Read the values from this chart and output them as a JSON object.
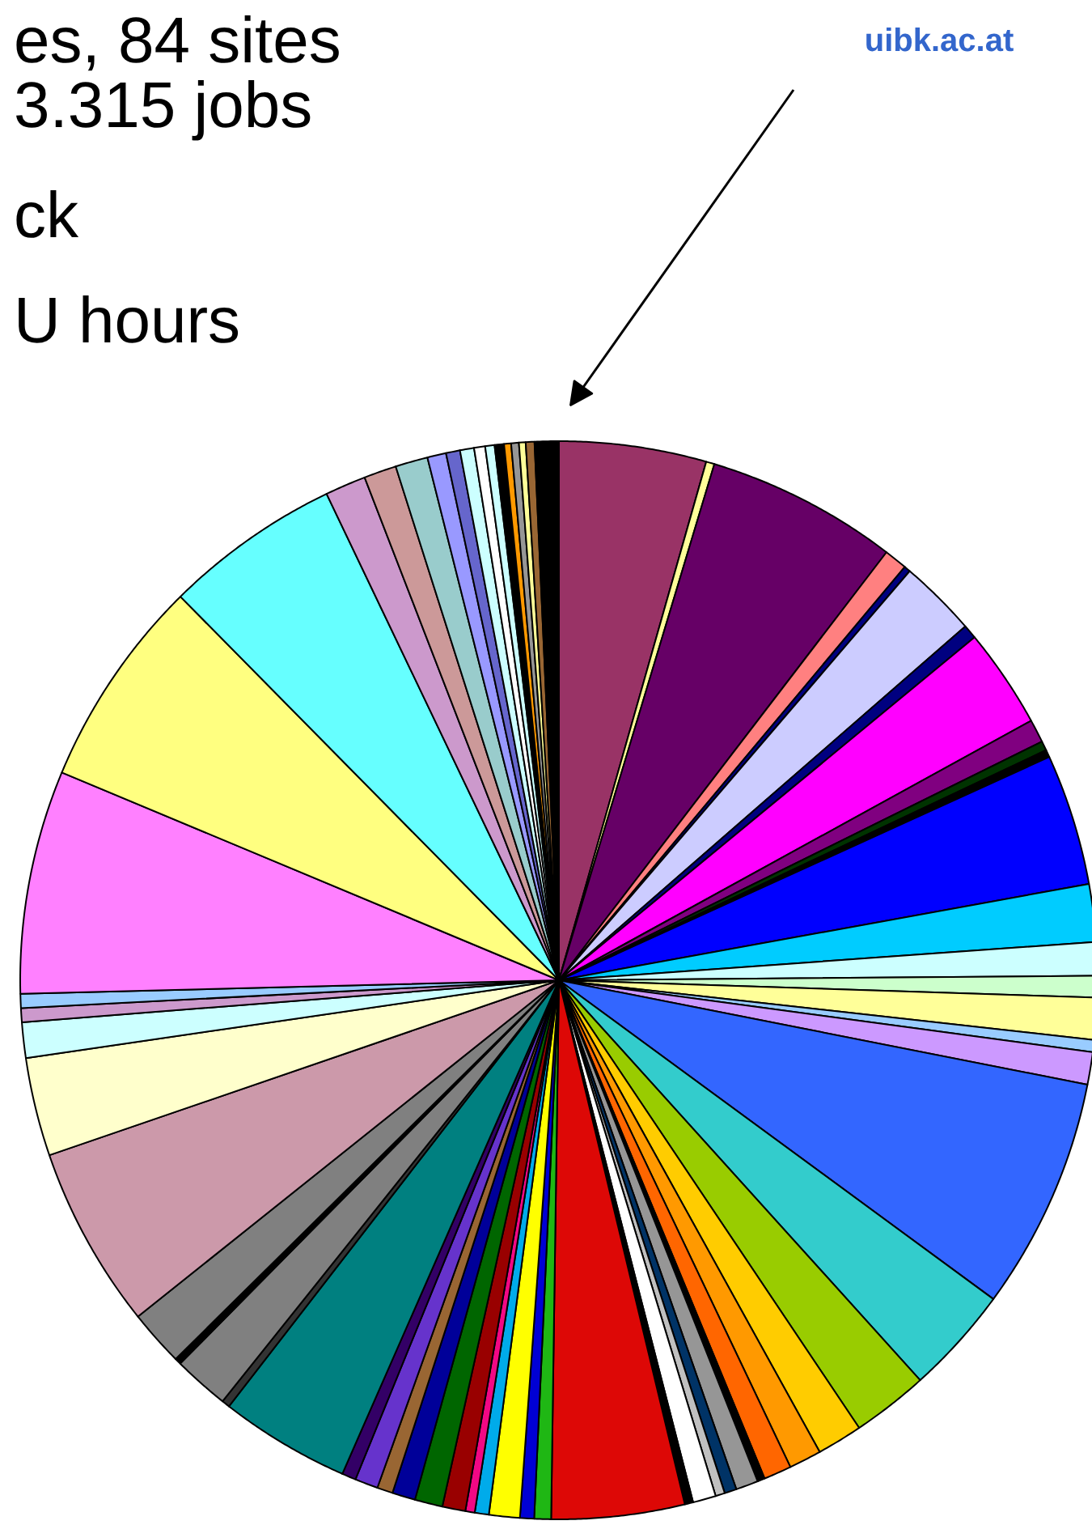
{
  "chart_data": {
    "type": "pie",
    "categories": [
      null,
      null,
      null,
      null,
      null,
      null,
      null,
      null,
      null,
      null,
      null,
      null,
      null,
      null,
      null,
      null,
      null,
      null,
      null,
      null,
      null,
      null,
      null,
      null,
      null,
      null,
      null,
      null,
      null,
      null,
      null,
      null,
      null,
      null,
      null,
      null,
      null,
      null,
      null,
      null,
      null,
      null,
      null,
      null,
      null,
      null,
      null,
      null,
      null,
      null,
      null,
      null,
      null,
      null,
      null,
      null,
      null,
      null,
      null,
      null,
      null,
      null,
      null,
      null,
      null,
      null,
      null,
      null,
      null
    ],
    "values": [
      4.39,
      0.25,
      5.72,
      0.69,
      0.19,
      2.31,
      0.42,
      2.97,
      0.69,
      0.28,
      0.22,
      3.92,
      1.72,
      1.0,
      0.64,
      1.25,
      0.36,
      0.97,
      6.94,
      3.22,
      2.28,
      1.36,
      0.97,
      0.83,
      0.22,
      0.67,
      0.36,
      0.28,
      0.69,
      0.25,
      3.97,
      0.5,
      0.42,
      0.92,
      0.42,
      0.28,
      0.69,
      0.83,
      0.69,
      0.47,
      0.69,
      0.42,
      3.89,
      0.24,
      1.67,
      0.19,
      1.67,
      5.44,
      2.94,
      1.06,
      0.42,
      0.42,
      6.67,
      6.28,
      5.28,
      1.22,
      0.97,
      0.97,
      0.56,
      0.42,
      0.42,
      0.33,
      0.28,
      0.28,
      0.21,
      0.23,
      0.2,
      0.26,
      0.72
    ],
    "colors": [
      "#993366",
      "#ffff99",
      "#660066",
      "#ff8080",
      "#000080",
      "#ccccff",
      "#000080",
      "#ff00ff",
      "#800080",
      "#003300",
      "#000000",
      "#0000ff",
      "#00ccff",
      "#ccffff",
      "#ccffcc",
      "#ffff99",
      "#99ccff",
      "#cc99ff",
      "#3366ff",
      "#33cccc",
      "#99cc00",
      "#ffcc00",
      "#ff9900",
      "#ff6600",
      "#000000",
      "#969696",
      "#003366",
      "#c0c0c0",
      "#ffffff",
      "#000000",
      "#dd0806",
      "#1fb714",
      "#0000d4",
      "#ffff00",
      "#00abea",
      "#f20884",
      "#990000",
      "#006600",
      "#000099",
      "#996633",
      "#6633cc",
      "#330066",
      "#008080",
      "#333333",
      "#808080",
      "#000000",
      "#808080",
      "#cc99aa",
      "#ffffcc",
      "#ccffff",
      "#cc99cc",
      "#99ccff",
      "#ff80ff",
      "#ffff80",
      "#66ffff",
      "#cc99cc",
      "#cc9999",
      "#99cccc",
      "#9999ff",
      "#6666cc",
      "#ccffff",
      "#ffffff",
      "#ccffff",
      "#000000",
      "#ff9900",
      "#969696",
      "#ffff99",
      "#996633",
      "#000000"
    ],
    "annotations": [
      "es, 84 sites",
      "3.315 jobs",
      "ck",
      "U hours",
      "uibk.ac.at"
    ]
  }
}
